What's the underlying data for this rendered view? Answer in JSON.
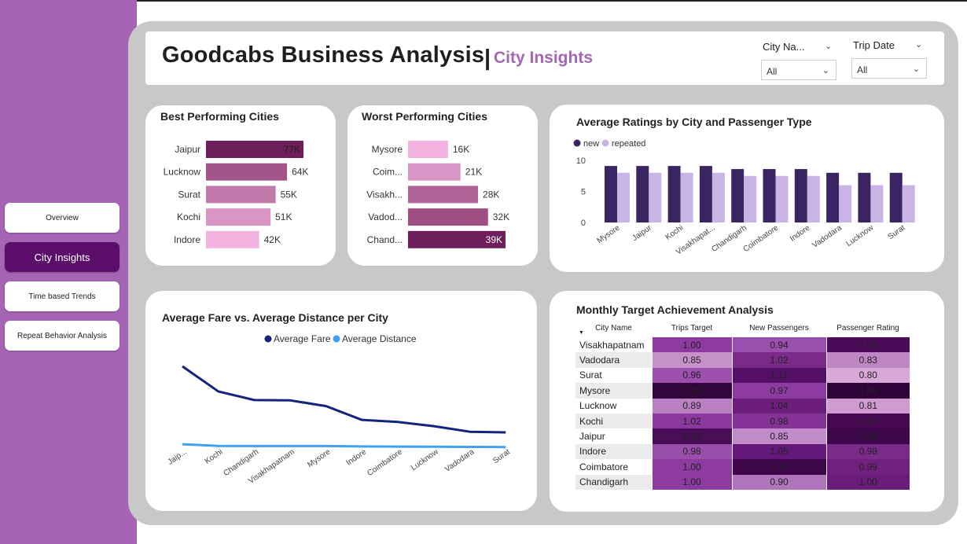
{
  "nav": {
    "items": [
      {
        "label": "Overview",
        "active": false
      },
      {
        "label": "City Insights",
        "active": true
      },
      {
        "label": "Time based Trends",
        "active": false
      },
      {
        "label": "Repeat Behavior Analysis",
        "active": false
      }
    ]
  },
  "header": {
    "title": "Goodcabs Business Analysis",
    "separator": "|",
    "subtitle": "City Insights"
  },
  "slicers": [
    {
      "label": "City Na...",
      "value": "All"
    },
    {
      "label": "Trip Date",
      "value": "All"
    }
  ],
  "best_cities": {
    "title": "Best Performing Cities",
    "chart_data": {
      "type": "bar",
      "orientation": "horizontal",
      "categories": [
        "Jaipur",
        "Lucknow",
        "Surat",
        "Kochi",
        "Indore"
      ],
      "values": [
        77,
        64,
        55,
        51,
        42
      ],
      "labels": [
        "77K",
        "64K",
        "55K",
        "51K",
        "42K"
      ],
      "colors": [
        "#6e1e5a",
        "#a35589",
        "#c27aaa",
        "#d995c4",
        "#f2b3de"
      ]
    }
  },
  "worst_cities": {
    "title": "Worst Performing Cities",
    "chart_data": {
      "type": "bar",
      "orientation": "horizontal",
      "categories": [
        "Mysore",
        "Coim...",
        "Visakh...",
        "Vadod...",
        "Chand..."
      ],
      "values": [
        16,
        21,
        28,
        32,
        39
      ],
      "labels": [
        "16K",
        "21K",
        "28K",
        "32K",
        "39K"
      ],
      "colors": [
        "#f2b3de",
        "#d995c4",
        "#b0649a",
        "#a04f85",
        "#6e1e5a"
      ]
    }
  },
  "ratings": {
    "title": "Average Ratings by City and Passenger Type",
    "chart_data": {
      "type": "bar",
      "categories": [
        "Mysore",
        "Jaipur",
        "Kochi",
        "Visakhapat...",
        "Chandigarh",
        "Coimbatore",
        "Indore",
        "Vadodara",
        "Lucknow",
        "Surat"
      ],
      "series": [
        {
          "name": "new",
          "color": "#3a2461",
          "values": [
            9.1,
            9.1,
            9.1,
            9.1,
            8.6,
            8.6,
            8.6,
            8.0,
            8.0,
            8.0
          ]
        },
        {
          "name": "repeated",
          "color": "#c9b4e6",
          "values": [
            8.0,
            8.0,
            8.0,
            8.0,
            7.5,
            7.5,
            7.5,
            6.0,
            6.0,
            6.0
          ]
        }
      ],
      "ylim": [
        0,
        10
      ],
      "yticks": [
        "0",
        "5",
        "10"
      ]
    }
  },
  "fare_distance": {
    "title": "Average Fare vs. Average Distance per City",
    "chart_data": {
      "type": "line",
      "categories": [
        "Jaip...",
        "Kochi",
        "Chandigarh",
        "Visakhapatnam",
        "Mysore",
        "Indore",
        "Coimbatore",
        "Lucknow",
        "Vadodara",
        "Surat"
      ],
      "series": [
        {
          "name": "Average Fare",
          "color": "#13247a",
          "values": [
            485,
            336,
            285,
            283,
            249,
            167,
            155,
            130,
            97,
            93
          ]
        },
        {
          "name": "Average Distance",
          "color": "#3fa1f2",
          "values": [
            23,
            13,
            12,
            12,
            12,
            10,
            9,
            8,
            7,
            6
          ]
        }
      ]
    }
  },
  "matrix": {
    "title": "Monthly Target Achievement Analysis",
    "sort_icon": "▼",
    "columns": [
      "City Name",
      "Trips Target",
      "New Passengers",
      "Passenger Rating"
    ],
    "rows": [
      {
        "city": "Visakhapatnam",
        "values": [
          "1.00",
          "0.94",
          "1.06"
        ],
        "colors": [
          "#8d3ba0",
          "#9a4ead",
          "#4d0a59"
        ]
      },
      {
        "city": "Vadodara",
        "values": [
          "0.85",
          "1.02",
          "0.83"
        ],
        "colors": [
          "#c591c8",
          "#7a2b8a",
          "#bf86c5"
        ]
      },
      {
        "city": "Surat",
        "values": [
          "0.96",
          "1.11",
          "0.80"
        ],
        "colors": [
          "#9c4fac",
          "#560f66",
          "#d9a8d9"
        ]
      },
      {
        "city": "Mysore",
        "values": [
          "1.20",
          "0.97",
          "1.09"
        ],
        "colors": [
          "#34043c",
          "#8d3ba0",
          "#30033a"
        ]
      },
      {
        "city": "Lucknow",
        "values": [
          "0.89",
          "1.04",
          "0.81"
        ],
        "colors": [
          "#bb80c3",
          "#6b1e7b",
          "#cf9bd1"
        ]
      },
      {
        "city": "Kochi",
        "values": [
          "1.02",
          "0.98",
          "1.07"
        ],
        "colors": [
          "#8b38a0",
          "#843296",
          "#470853"
        ]
      },
      {
        "city": "Jaipur",
        "values": [
          "1.14",
          "0.85",
          "1.08"
        ],
        "colors": [
          "#4a0d57",
          "#c18ac9",
          "#3c0648"
        ]
      },
      {
        "city": "Indore",
        "values": [
          "0.98",
          "1.05",
          "0.98"
        ],
        "colors": [
          "#9a4eac",
          "#63187a",
          "#7a2b8a"
        ]
      },
      {
        "city": "Coimbatore",
        "values": [
          "1.00",
          "1.14",
          "0.99"
        ],
        "colors": [
          "#8d3ba0",
          "#3c0648",
          "#702180"
        ]
      },
      {
        "city": "Chandigarh",
        "values": [
          "1.00",
          "0.90",
          "1.00"
        ],
        "colors": [
          "#8d3ba0",
          "#b074bd",
          "#6a1c7a"
        ]
      }
    ]
  }
}
